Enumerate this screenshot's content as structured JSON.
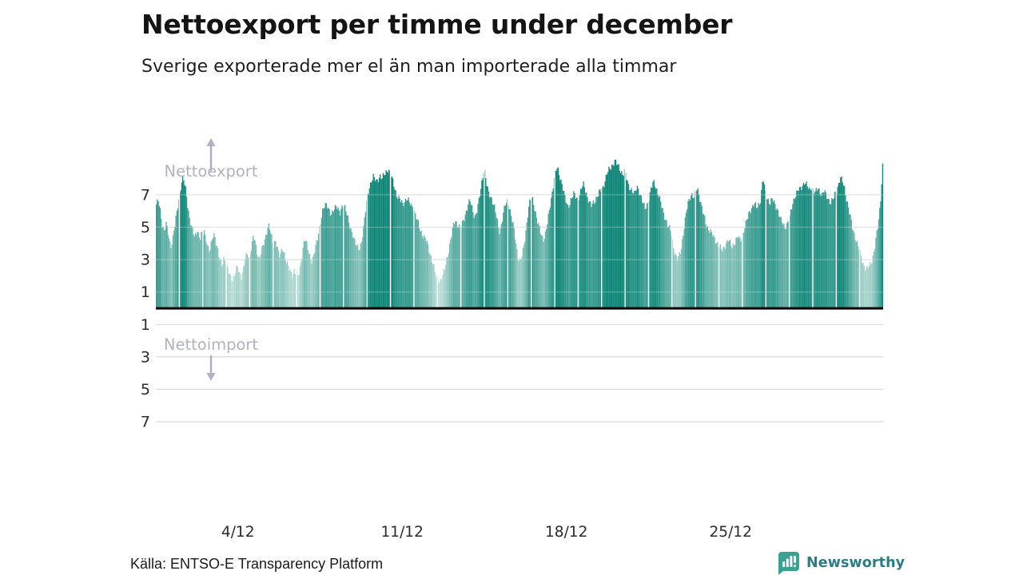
{
  "header": {
    "title": "Nettoexport per timme under december",
    "subtitle": "Sverige exporterade mer el än man importerade alla timmar"
  },
  "annotations": {
    "export_label": "Nettoexport",
    "import_label": "Nettoimport"
  },
  "footer": {
    "source": "Källa: ENTSO-E Transparency Platform",
    "brand": "Newsworthy"
  },
  "colors": {
    "title": "#141414",
    "text": "#1f1f1f",
    "tick": "#2b2b2b",
    "grid": "#d9d9d9",
    "grid_overlay": "rgba(255,255,255,0.28)",
    "axis": "#000000",
    "annotation": "#b1b2c1",
    "bar_low": "#c9e4de",
    "bar_high": "#0d8678",
    "brand_icon": "#3ba291",
    "brand_text": "#2a7d85"
  },
  "chart_data": {
    "type": "bar",
    "title": "Nettoexport per timme under december",
    "xlabel": "",
    "ylabel": "",
    "x_unit": "hour of December",
    "days": 31,
    "hours_per_day": 24,
    "x_ticks": [
      {
        "label": "4/12",
        "day": 4
      },
      {
        "label": "11/12",
        "day": 11
      },
      {
        "label": "18/12",
        "day": 18
      },
      {
        "label": "25/12",
        "day": 25
      }
    ],
    "y_ticks_export": [
      7,
      5,
      3,
      1
    ],
    "y_ticks_import": [
      1,
      3,
      5,
      7
    ],
    "ylim": [
      -8.2,
      9.6
    ],
    "grid": true,
    "bar_color_domain": [
      1.2,
      8.0
    ],
    "values": [
      6.4,
      6.5,
      6.6,
      6.3,
      6.0,
      5.6,
      5.2,
      5.0,
      4.8,
      5.0,
      5.2,
      4.9,
      4.6,
      4.3,
      4.0,
      3.9,
      4.1,
      4.4,
      4.8,
      5.1,
      5.5,
      5.9,
      6.3,
      6.7,
      7.1,
      7.5,
      7.8,
      8.0,
      7.9,
      7.6,
      7.3,
      6.9,
      6.4,
      6.0,
      5.6,
      5.3,
      5.0,
      4.8,
      4.6,
      4.4,
      4.5,
      4.7,
      4.9,
      4.6,
      4.4,
      4.3,
      4.5,
      4.6,
      4.6,
      4.8,
      4.5,
      4.3,
      4.0,
      3.7,
      3.5,
      3.6,
      3.9,
      4.2,
      4.5,
      4.6,
      4.4,
      4.1,
      3.8,
      3.5,
      3.2,
      3.0,
      2.8,
      2.7,
      2.9,
      3.1,
      3.0,
      2.8,
      2.6,
      2.4,
      2.2,
      2.1,
      2.0,
      1.9,
      1.8,
      1.9,
      2.0,
      2.2,
      2.4,
      2.5,
      2.4,
      2.2,
      2.1,
      2.0,
      2.2,
      2.4,
      2.7,
      3.0,
      3.2,
      3.4,
      3.3,
      3.1,
      3.4,
      3.7,
      4.0,
      4.3,
      4.3,
      4.1,
      3.8,
      3.5,
      3.3,
      3.1,
      3.2,
      3.4,
      3.6,
      3.8,
      4.0,
      4.2,
      4.5,
      4.8,
      5.0,
      5.1,
      4.9,
      4.6,
      4.3,
      4.0,
      3.9,
      4.1,
      4.2,
      4.0,
      3.7,
      3.4,
      3.2,
      3.3,
      3.5,
      3.7,
      3.6,
      3.4,
      3.1,
      2.9,
      2.7,
      2.5,
      2.4,
      2.3,
      2.2,
      2.1,
      2.2,
      2.3,
      2.2,
      2.1,
      2.1,
      2.0,
      2.2,
      2.5,
      2.9,
      3.3,
      3.7,
      4.0,
      4.2,
      4.1,
      3.9,
      3.7,
      3.5,
      3.3,
      3.1,
      2.9,
      3.0,
      3.2,
      3.5,
      3.8,
      4.1,
      4.4,
      4.7,
      5.0,
      5.3,
      5.6,
      5.9,
      6.1,
      6.3,
      6.4,
      6.5,
      6.4,
      6.2,
      6.0,
      5.8,
      5.7,
      5.8,
      6.0,
      6.2,
      6.3,
      6.4,
      6.3,
      6.1,
      5.9,
      5.8,
      6.0,
      6.2,
      6.4,
      6.4,
      6.3,
      6.1,
      5.8,
      5.5,
      5.2,
      5.0,
      4.8,
      4.7,
      4.6,
      4.4,
      4.2,
      4.0,
      3.8,
      3.7,
      3.6,
      3.7,
      3.9,
      4.2,
      4.6,
      5.0,
      5.5,
      6.0,
      6.5,
      6.9,
      7.2,
      7.5,
      7.7,
      7.9,
      8.0,
      8.1,
      8.0,
      7.9,
      7.8,
      7.9,
      8.0,
      8.1,
      8.2,
      8.1,
      8.0,
      8.1,
      8.2,
      8.3,
      8.4,
      8.5,
      8.6,
      8.5,
      8.4,
      8.2,
      8.0,
      7.8,
      7.6,
      7.4,
      7.2,
      7.0,
      6.9,
      6.8,
      6.7,
      6.6,
      6.5,
      6.4,
      6.5,
      6.6,
      6.7,
      6.8,
      6.7,
      6.6,
      6.5,
      6.4,
      6.3,
      6.3,
      6.2,
      6.0,
      5.8,
      5.6,
      5.4,
      5.2,
      5.0,
      4.8,
      4.7,
      4.6,
      4.5,
      4.4,
      4.3,
      4.2,
      4.0,
      3.8,
      3.6,
      3.4,
      3.2,
      3.0,
      2.8,
      2.5,
      2.2,
      2.0,
      1.8,
      1.9,
      1.8,
      1.7,
      1.8,
      1.9,
      2.0,
      2.2,
      2.4,
      2.7,
      3.0,
      3.3,
      3.6,
      3.9,
      4.2,
      4.5,
      4.8,
      5.1,
      5.3,
      5.4,
      5.3,
      5.2,
      5.1,
      5.0,
      4.9,
      5.0,
      5.2,
      5.4,
      5.6,
      5.8,
      6.0,
      6.2,
      6.4,
      6.5,
      6.6,
      6.4,
      6.2,
      6.0,
      5.8,
      5.7,
      5.8,
      6.0,
      6.3,
      6.6,
      7.0,
      7.4,
      7.8,
      8.2,
      8.5,
      8.4,
      8.0,
      7.6,
      7.3,
      7.1,
      7.0,
      6.9,
      6.8,
      6.6,
      6.4,
      6.2,
      5.9,
      5.6,
      5.3,
      5.0,
      4.8,
      4.9,
      5.2,
      5.5,
      5.8,
      6.1,
      6.4,
      6.5,
      6.6,
      6.5,
      6.3,
      6.0,
      5.7,
      5.4,
      5.1,
      4.8,
      4.4,
      4.0,
      3.6,
      3.2,
      3.0,
      2.9,
      3.0,
      3.2,
      3.5,
      3.9,
      4.3,
      4.8,
      5.3,
      5.8,
      6.2,
      6.5,
      6.7,
      6.8,
      6.7,
      6.5,
      6.2,
      5.9,
      5.6,
      5.3,
      5.1,
      4.9,
      4.7,
      4.5,
      4.4,
      4.3,
      4.4,
      4.6,
      4.9,
      5.2,
      5.6,
      6.0,
      6.4,
      6.8,
      7.2,
      7.6,
      8.0,
      8.3,
      8.5,
      8.6,
      8.5,
      8.3,
      8.1,
      7.9,
      7.7,
      7.4,
      7.1,
      6.8,
      6.6,
      6.4,
      6.3,
      6.4,
      6.5,
      6.7,
      6.8,
      6.9,
      7.0,
      7.0,
      6.9,
      6.8,
      6.8,
      6.9,
      7.0,
      7.2,
      7.4,
      7.5,
      7.6,
      7.5,
      7.3,
      7.1,
      6.9,
      6.7,
      6.5,
      6.4,
      6.3,
      6.4,
      6.5,
      6.6,
      6.7,
      6.8,
      6.9,
      7.0,
      7.1,
      7.2,
      7.3,
      7.4,
      7.5,
      7.7,
      7.9,
      8.1,
      8.3,
      8.4,
      8.5,
      8.6,
      8.7,
      8.8,
      8.9,
      9.0,
      9.1,
      9.0,
      8.9,
      8.8,
      8.7,
      8.6,
      8.5,
      8.4,
      8.3,
      8.3,
      8.4,
      8.2,
      8.0,
      7.8,
      7.6,
      7.5,
      7.4,
      7.3,
      7.2,
      7.1,
      7.0,
      7.2,
      7.4,
      7.5,
      7.4,
      7.2,
      7.0,
      6.8,
      6.6,
      6.4,
      6.3,
      6.2,
      6.3,
      6.4,
      6.6,
      6.8,
      7.0,
      7.3,
      7.5,
      7.7,
      7.8,
      7.7,
      7.5,
      7.3,
      7.1,
      6.9,
      6.7,
      6.5,
      6.3,
      6.1,
      5.9,
      5.7,
      5.5,
      5.3,
      5.1,
      5.0,
      4.9,
      4.8,
      4.6,
      4.2,
      3.8,
      3.5,
      3.3,
      3.1,
      3.0,
      3.1,
      3.3,
      3.5,
      3.8,
      4.2,
      4.6,
      5.0,
      5.4,
      5.8,
      6.2,
      6.5,
      6.7,
      6.9,
      7.0,
      7.0,
      6.9,
      6.8,
      7.0,
      7.2,
      7.4,
      7.3,
      7.1,
      6.8,
      6.5,
      6.2,
      5.9,
      5.7,
      5.5,
      5.3,
      5.1,
      5.0,
      4.9,
      4.8,
      4.7,
      4.6,
      4.5,
      4.4,
      4.3,
      4.2,
      4.1,
      4.0,
      3.9,
      3.8,
      3.7,
      3.6,
      3.6,
      3.7,
      3.8,
      3.9,
      4.0,
      4.1,
      4.2,
      4.1,
      4.0,
      3.9,
      3.8,
      3.9,
      4.0,
      4.1,
      4.2,
      4.3,
      4.4,
      4.3,
      4.2,
      4.3,
      4.4,
      4.6,
      4.8,
      5.0,
      5.2,
      5.4,
      5.6,
      5.8,
      6.0,
      6.1,
      6.2,
      6.3,
      6.4,
      6.4,
      6.3,
      6.2,
      6.3,
      6.4,
      6.5,
      6.7,
      7.2,
      7.7,
      7.9,
      7.5,
      7.1,
      6.9,
      6.8,
      6.7,
      6.6,
      6.5,
      6.6,
      6.7,
      6.6,
      6.5,
      6.4,
      6.3,
      6.2,
      6.0,
      5.8,
      5.6,
      5.4,
      5.3,
      5.2,
      5.1,
      5.0,
      5.1,
      5.2,
      5.3,
      5.4,
      5.6,
      5.9,
      6.2,
      6.5,
      6.7,
      6.9,
      7.0,
      7.1,
      7.2,
      7.3,
      7.3,
      7.4,
      7.5,
      7.6,
      7.7,
      7.8,
      7.7,
      7.6,
      7.5,
      7.4,
      7.3,
      7.4,
      7.5,
      7.4,
      7.3,
      7.2,
      7.1,
      7.2,
      7.3,
      7.4,
      7.3,
      7.2,
      7.1,
      7.0,
      7.1,
      7.2,
      7.1,
      7.0,
      6.9,
      6.8,
      6.7,
      6.6,
      6.5,
      6.6,
      6.7,
      6.8,
      7.0,
      7.2,
      7.3,
      7.5,
      7.7,
      7.9,
      8.0,
      7.9,
      7.8,
      7.6,
      7.4,
      7.1,
      6.8,
      6.5,
      6.2,
      5.9,
      5.6,
      5.3,
      5.0,
      4.8,
      4.6,
      4.4,
      4.2,
      4.0,
      3.8,
      3.6,
      3.4,
      3.2,
      3.0,
      2.8,
      2.6,
      2.5,
      2.4,
      2.4,
      2.5,
      2.6,
      2.7,
      2.8,
      3.0,
      3.2,
      3.5,
      3.8,
      4.2,
      4.6,
      5.0,
      5.5,
      6.1,
      6.8,
      7.8,
      8.8
    ]
  }
}
